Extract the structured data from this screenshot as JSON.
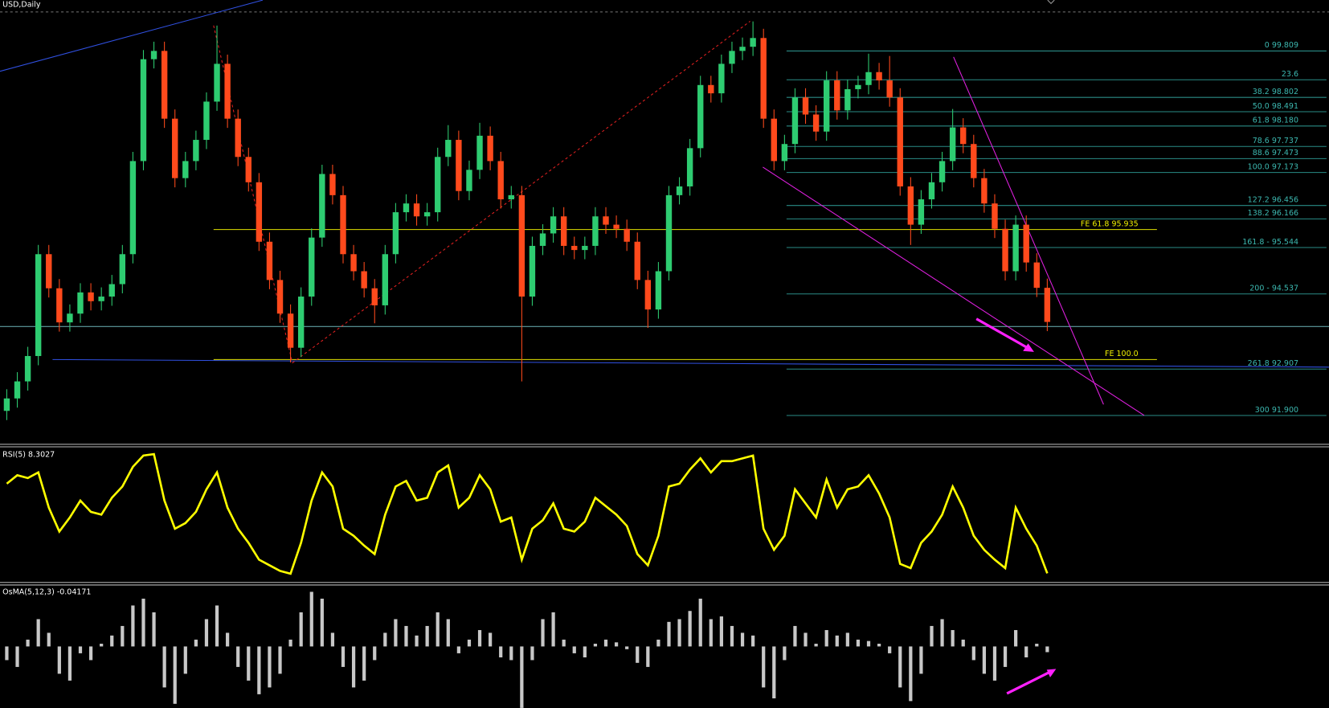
{
  "chart_data": [
    {
      "type": "candlestick",
      "title": "USD,Daily",
      "open": [
        92.0,
        92.27,
        92.64,
        93.19,
        95.4,
        94.66,
        93.92,
        94.11,
        94.57,
        94.38,
        94.48,
        94.75,
        95.4,
        97.42,
        99.63,
        99.81,
        98.34,
        97.05,
        97.42,
        97.88,
        98.71,
        99.53,
        98.34,
        97.51,
        96.96,
        95.67,
        94.84,
        94.11,
        93.37,
        94.48,
        95.76,
        97.14,
        96.68,
        95.4,
        95.03,
        94.66,
        94.29,
        95.4,
        96.31,
        96.5,
        96.22,
        96.31,
        97.51,
        97.88,
        96.77,
        97.23,
        97.97,
        97.42,
        96.59,
        96.68,
        94.48,
        95.58,
        95.85,
        96.22,
        95.58,
        95.49,
        95.58,
        96.22,
        96.04,
        95.95,
        95.67,
        94.84,
        94.2,
        95.03,
        96.68,
        96.87,
        97.7,
        99.07,
        98.89,
        99.53,
        99.81,
        99.9,
        100.09,
        98.34,
        97.42,
        97.79,
        98.8,
        98.43,
        98.06,
        99.17,
        98.52,
        98.98,
        99.07,
        99.35,
        99.17,
        98.8,
        96.87,
        96.04,
        96.59,
        96.96,
        97.42,
        98.15,
        97.79,
        97.05,
        96.5,
        95.95,
        95.03,
        96.04,
        95.22,
        94.67
      ],
      "high": [
        92.47,
        92.84,
        93.39,
        95.6,
        95.6,
        94.86,
        94.31,
        94.77,
        94.77,
        94.68,
        94.95,
        95.6,
        97.62,
        99.83,
        100.01,
        100.01,
        98.54,
        97.62,
        98.08,
        98.91,
        100.36,
        99.73,
        98.54,
        97.71,
        97.16,
        95.87,
        95.04,
        94.31,
        94.68,
        95.96,
        97.34,
        97.34,
        96.88,
        95.6,
        95.23,
        94.86,
        95.6,
        96.51,
        96.7,
        96.7,
        96.51,
        97.71,
        98.2,
        98.08,
        97.43,
        98.25,
        98.17,
        97.62,
        96.88,
        96.88,
        95.78,
        96.05,
        96.42,
        96.42,
        95.78,
        95.78,
        96.42,
        96.42,
        96.24,
        96.15,
        95.87,
        95.04,
        95.23,
        96.88,
        97.07,
        97.9,
        99.27,
        99.27,
        99.73,
        100.01,
        100.1,
        100.45,
        100.29,
        98.54,
        97.99,
        99.0,
        99.0,
        98.63,
        99.37,
        99.37,
        99.18,
        99.27,
        99.75,
        99.55,
        99.7,
        99.0,
        97.07,
        96.79,
        97.16,
        97.62,
        98.55,
        98.35,
        97.99,
        97.25,
        96.7,
        96.15,
        96.24,
        96.24,
        95.42,
        94.87
      ],
      "low": [
        91.8,
        92.07,
        92.44,
        92.99,
        94.46,
        93.72,
        93.72,
        93.91,
        94.18,
        94.18,
        94.28,
        94.55,
        95.2,
        97.22,
        99.43,
        98.14,
        96.85,
        96.85,
        97.22,
        97.68,
        98.51,
        98.14,
        97.31,
        96.76,
        95.47,
        94.64,
        93.91,
        93.05,
        93.17,
        94.28,
        95.56,
        96.48,
        95.2,
        94.83,
        94.46,
        93.9,
        94.09,
        95.2,
        96.11,
        96.02,
        96.02,
        96.11,
        97.31,
        96.57,
        96.57,
        97.03,
        97.22,
        96.39,
        96.39,
        92.64,
        94.28,
        95.38,
        95.65,
        95.38,
        95.29,
        95.29,
        95.38,
        95.84,
        95.75,
        95.47,
        94.64,
        93.8,
        94.0,
        94.83,
        96.48,
        96.67,
        97.5,
        98.69,
        98.69,
        99.33,
        99.61,
        99.7,
        98.14,
        97.22,
        97.22,
        97.59,
        98.23,
        97.86,
        97.86,
        98.32,
        98.32,
        98.78,
        98.87,
        98.97,
        98.6,
        96.67,
        95.6,
        95.84,
        96.39,
        96.76,
        97.22,
        97.59,
        96.85,
        96.3,
        95.75,
        94.83,
        94.83,
        95.02,
        94.47,
        93.73
      ],
      "close": [
        92.27,
        92.64,
        93.19,
        95.4,
        94.66,
        93.92,
        94.11,
        94.57,
        94.38,
        94.48,
        94.75,
        95.4,
        97.42,
        99.63,
        99.81,
        98.34,
        97.05,
        97.42,
        97.88,
        98.71,
        99.53,
        98.34,
        97.51,
        96.96,
        95.67,
        94.84,
        94.11,
        93.37,
        94.48,
        95.76,
        97.14,
        96.68,
        95.4,
        95.03,
        94.66,
        94.29,
        95.4,
        96.31,
        96.5,
        96.22,
        96.31,
        97.51,
        97.88,
        96.77,
        97.23,
        97.97,
        97.42,
        96.59,
        96.68,
        94.48,
        95.58,
        95.85,
        96.22,
        95.58,
        95.49,
        95.58,
        96.22,
        96.04,
        95.95,
        95.67,
        94.84,
        94.2,
        95.03,
        96.68,
        96.87,
        97.7,
        99.07,
        98.89,
        99.53,
        99.81,
        99.9,
        100.09,
        98.34,
        97.42,
        97.79,
        98.8,
        98.43,
        98.06,
        99.17,
        98.52,
        98.98,
        99.07,
        99.35,
        99.17,
        98.8,
        96.87,
        96.04,
        96.59,
        96.96,
        97.42,
        98.15,
        97.79,
        97.05,
        96.5,
        95.95,
        95.03,
        96.04,
        95.22,
        94.67,
        93.93
      ],
      "up_color": "#2ecc71",
      "down_color": "#ff4a1c",
      "ylim": [
        91.312,
        100.637
      ],
      "levels": [
        {
          "value": 99.809,
          "label": "0 99.809"
        },
        {
          "value": 99.184,
          "label": "23.6"
        },
        {
          "value": 98.802,
          "label": "38.2 98.802"
        },
        {
          "value": 98.491,
          "label": "50.0 98.491"
        },
        {
          "value": 98.18,
          "label": "61.8 98.180"
        },
        {
          "value": 97.737,
          "label": "78.6 97.737"
        },
        {
          "value": 97.473,
          "label": "88.6 97.473"
        },
        {
          "value": 97.173,
          "label": "100.0 97.173"
        },
        {
          "value": 96.456,
          "label": "127.2 96.456"
        },
        {
          "value": 96.166,
          "label": "138.2 96.166"
        },
        {
          "value": 95.544,
          "label": "161.8 - 95.544"
        },
        {
          "value": 94.537,
          "label": "200 - 94.537"
        },
        {
          "value": 92.907,
          "label": "261.8 92.907"
        },
        {
          "value": 91.9,
          "label": "300 91.900"
        }
      ],
      "level_color": "#2a8c86",
      "fe_levels": [
        {
          "value": 95.935,
          "label": "FE 61.8 95.935"
        },
        {
          "value": 93.114,
          "label": "FE 100.0"
        }
      ],
      "fe_color": "#e0e000",
      "price_line": 93.83,
      "price_line_color": "#5f9ea0"
    },
    {
      "type": "line",
      "title": "RSI(5) 8.3027",
      "values": [
        72,
        78,
        76,
        80,
        55,
        38,
        48,
        60,
        52,
        50,
        62,
        70,
        84,
        92,
        93,
        60,
        40,
        44,
        52,
        68,
        80,
        55,
        40,
        30,
        18,
        14,
        10,
        8,
        30,
        60,
        80,
        70,
        40,
        35,
        28,
        22,
        50,
        70,
        74,
        60,
        62,
        80,
        85,
        55,
        62,
        78,
        68,
        45,
        48,
        18,
        40,
        46,
        58,
        40,
        38,
        45,
        62,
        56,
        50,
        42,
        22,
        14,
        35,
        70,
        72,
        82,
        90,
        80,
        88,
        88,
        90,
        92,
        40,
        25,
        35,
        68,
        58,
        48,
        75,
        55,
        68,
        70,
        78,
        65,
        48,
        15,
        12,
        30,
        38,
        50,
        70,
        55,
        35,
        25,
        18,
        12,
        55,
        40,
        28,
        8.3027
      ],
      "color": "#ffff00",
      "ylim": [
        0,
        100
      ]
    },
    {
      "type": "bar",
      "title": "OsMA(5,12,3) -0.04171",
      "values": [
        -0.1,
        -0.15,
        0.05,
        0.2,
        0.1,
        -0.2,
        -0.25,
        -0.05,
        -0.1,
        0.02,
        0.08,
        0.15,
        0.3,
        0.35,
        0.25,
        -0.3,
        -0.42,
        -0.2,
        0.05,
        0.2,
        0.3,
        0.1,
        -0.15,
        -0.25,
        -0.35,
        -0.3,
        -0.2,
        0.05,
        0.25,
        0.4,
        0.35,
        0.1,
        -0.15,
        -0.3,
        -0.25,
        -0.1,
        0.1,
        0.2,
        0.15,
        0.08,
        0.15,
        0.25,
        0.2,
        -0.05,
        0.05,
        0.12,
        0.1,
        -0.08,
        -0.1,
        -0.45,
        -0.1,
        0.2,
        0.25,
        0.05,
        -0.05,
        -0.08,
        0.02,
        0.05,
        0.03,
        -0.02,
        -0.12,
        -0.15,
        0.05,
        0.18,
        0.2,
        0.26,
        0.35,
        0.2,
        0.22,
        0.15,
        0.1,
        0.08,
        -0.3,
        -0.38,
        -0.1,
        0.15,
        0.1,
        0.02,
        0.12,
        0.08,
        0.1,
        0.05,
        0.04,
        0.02,
        -0.05,
        -0.3,
        -0.4,
        -0.2,
        0.15,
        0.2,
        0.12,
        0.05,
        -0.1,
        -0.2,
        -0.25,
        -0.15,
        0.12,
        -0.08,
        0.02,
        -0.04171
      ],
      "color": "#c8c8c8",
      "ylim": [
        -0.45,
        0.45
      ]
    }
  ]
}
